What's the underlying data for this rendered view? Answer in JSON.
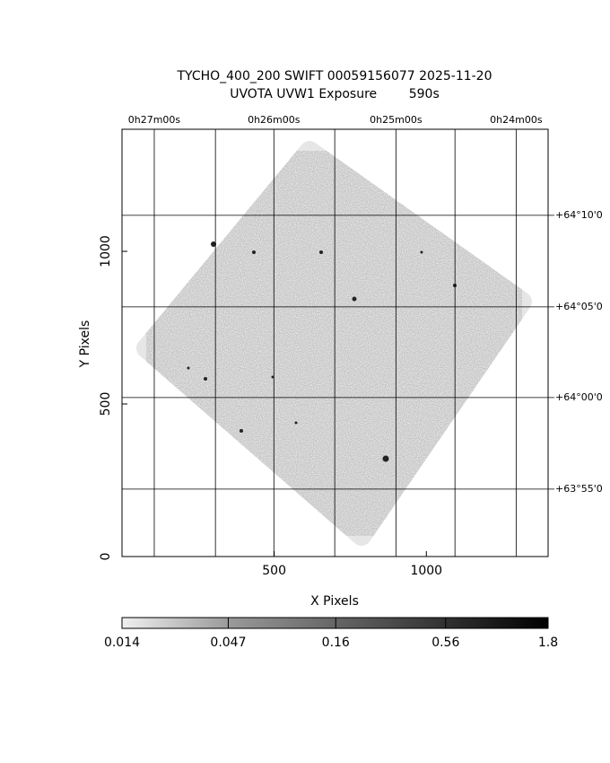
{
  "chart_data": {
    "type": "image",
    "title": "TYCHO_400_200 SWIFT 00059156077 2025-11-20",
    "subtitle": "UVOTA UVW1 Exposure        590s",
    "xlabel": "X Pixels",
    "ylabel": "Y Pixels",
    "xlim": [
      0,
      1400
    ],
    "ylim": [
      0,
      1400
    ],
    "xticks": [
      500,
      1000
    ],
    "yticks": [
      0,
      500,
      1000
    ],
    "x2ticks": [
      {
        "value": 106,
        "label": "0h27m00s"
      },
      {
        "value": 499,
        "label": "0h26m00s"
      },
      {
        "value": 900,
        "label": "0h25m00s"
      },
      {
        "value": 1295,
        "label": "0h24m00s"
      }
    ],
    "x2minor": [
      307,
      699,
      1094
    ],
    "y2ticks": [
      {
        "value": 1118,
        "label": "+64°10'0"
      },
      {
        "value": 818,
        "label": "+64°05'0"
      },
      {
        "value": 521,
        "label": "+64°00'0"
      },
      {
        "value": 221,
        "label": "+63°55'0"
      }
    ],
    "grid": true,
    "colorbar": {
      "lim": [
        0.014,
        1.8
      ],
      "ticks": [
        0.014,
        0.047,
        0.16,
        0.56,
        1.8
      ],
      "log": true
    }
  }
}
